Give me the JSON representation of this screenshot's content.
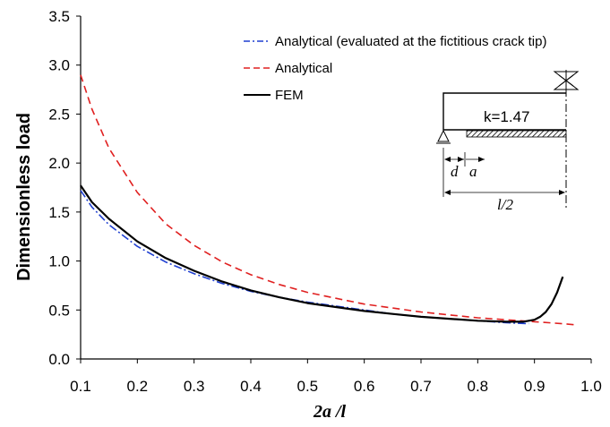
{
  "chart_data": {
    "type": "line",
    "xlabel": "2a /l",
    "ylabel": "Dimensionless load",
    "xlim": [
      0.1,
      1.0
    ],
    "ylim": [
      0.0,
      3.5
    ],
    "xticks": [
      "0.1",
      "0.2",
      "0.3",
      "0.4",
      "0.5",
      "0.6",
      "0.7",
      "0.8",
      "0.9",
      "1.0"
    ],
    "yticks": [
      "0.0",
      "0.5",
      "1.0",
      "1.5",
      "2.0",
      "2.5",
      "3.0",
      "3.5"
    ],
    "grid": false,
    "legend_position": "top-right",
    "series": [
      {
        "name": "Analytical (evaluated at the fictitious crack tip)",
        "color": "#1f3fd1",
        "dash": "dash-dot",
        "x": [
          0.1,
          0.12,
          0.15,
          0.2,
          0.25,
          0.3,
          0.35,
          0.4,
          0.45,
          0.5,
          0.55,
          0.6,
          0.65,
          0.7,
          0.75,
          0.8,
          0.85,
          0.89
        ],
        "y": [
          1.72,
          1.55,
          1.37,
          1.15,
          0.99,
          0.87,
          0.77,
          0.69,
          0.63,
          0.58,
          0.54,
          0.5,
          0.46,
          0.43,
          0.41,
          0.39,
          0.37,
          0.36
        ]
      },
      {
        "name": "Analytical",
        "color": "#e02020",
        "dash": "dashed",
        "x": [
          0.1,
          0.12,
          0.15,
          0.2,
          0.25,
          0.3,
          0.35,
          0.4,
          0.45,
          0.5,
          0.55,
          0.6,
          0.65,
          0.7,
          0.75,
          0.8,
          0.85,
          0.9,
          0.95,
          0.97
        ],
        "y": [
          2.9,
          2.55,
          2.15,
          1.7,
          1.38,
          1.16,
          0.99,
          0.86,
          0.76,
          0.68,
          0.62,
          0.56,
          0.52,
          0.48,
          0.45,
          0.42,
          0.4,
          0.38,
          0.36,
          0.35
        ]
      },
      {
        "name": "FEM",
        "color": "#000000",
        "dash": "solid",
        "x": [
          0.1,
          0.12,
          0.15,
          0.2,
          0.25,
          0.3,
          0.35,
          0.4,
          0.45,
          0.5,
          0.55,
          0.6,
          0.65,
          0.7,
          0.75,
          0.8,
          0.85,
          0.88,
          0.9,
          0.91,
          0.92,
          0.93,
          0.94,
          0.95
        ],
        "y": [
          1.77,
          1.6,
          1.43,
          1.2,
          1.03,
          0.9,
          0.79,
          0.7,
          0.63,
          0.57,
          0.53,
          0.49,
          0.46,
          0.43,
          0.41,
          0.39,
          0.38,
          0.38,
          0.4,
          0.43,
          0.48,
          0.56,
          0.68,
          0.84
        ]
      }
    ],
    "inset": {
      "label_k": "k=1.47",
      "label_d": "d",
      "label_a": "a",
      "label_l2": "l/2"
    }
  },
  "colors": {
    "analytical_tip": "#1f3fd1",
    "analytical": "#e02020",
    "fem": "#000000"
  }
}
